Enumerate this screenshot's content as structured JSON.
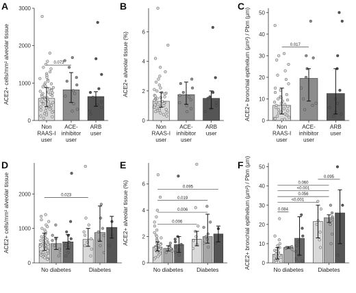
{
  "panels": [
    {
      "id": "A",
      "letter": "A",
      "ylabel": "ACE2+ cells/mm² alveolar tissue",
      "ylim": [
        0,
        3000
      ],
      "yticks": [
        0,
        1000,
        2000,
        3000
      ],
      "type": "bar",
      "categories": [
        "Non RAAS-I user",
        "ACE- inhibitor user",
        "ARB user"
      ],
      "category_lines": [
        [
          "Non",
          "RAAS-I",
          "user"
        ],
        [
          "ACE-",
          "inhibitor",
          "user"
        ],
        [
          "ARB",
          "user"
        ]
      ],
      "bars": [
        {
          "mean": 590,
          "err": [
            370,
            880
          ],
          "color": "#d9d9d9",
          "points": [
            2780,
            1800,
            1580,
            1500,
            1420,
            1380,
            1300,
            1250,
            1200,
            1150,
            1120,
            1080,
            1050,
            1000,
            980,
            950,
            920,
            900,
            880,
            850,
            820,
            800,
            780,
            760,
            740,
            720,
            700,
            680,
            660,
            640,
            620,
            600,
            580,
            560,
            540,
            520,
            500,
            480,
            460,
            440,
            420,
            400,
            380,
            360,
            340,
            320,
            300,
            280,
            260,
            240,
            220,
            200,
            180,
            150,
            120,
            100,
            60
          ]
        },
        {
          "mean": 820,
          "err": [
            480,
            1280
          ],
          "color": "#8c8c8c",
          "points": [
            1680,
            1600,
            1420,
            1150,
            1050,
            950,
            800,
            720,
            650,
            450,
            300,
            250
          ]
        },
        {
          "mean": 640,
          "err": [
            380,
            770
          ],
          "color": "#555555",
          "points": [
            2620,
            1650,
            1230,
            850,
            750,
            620,
            500,
            420,
            350,
            260,
            170
          ]
        }
      ],
      "brackets": [
        {
          "from": 0,
          "to": 1,
          "y": 1480,
          "label": "0.073"
        }
      ]
    },
    {
      "id": "B",
      "letter": "B",
      "ylabel": "ACE2+ alveolar tissue (%)",
      "ylim": [
        0,
        7.6
      ],
      "yticks": [
        0,
        2,
        4,
        6
      ],
      "type": "bar",
      "categories": [
        "Non RAAS-I user",
        "ACE- inhibitor user",
        "ARB user"
      ],
      "category_lines": [
        [
          "Non",
          "RAAS-I",
          "user"
        ],
        [
          "ACE-",
          "inhibitor",
          "user"
        ],
        [
          "ARB",
          "user"
        ]
      ],
      "bars": [
        {
          "mean": 1.3,
          "err": [
            0.9,
            1.9
          ],
          "color": "#d9d9d9",
          "points": [
            7.6,
            5.1,
            4.2,
            3.6,
            3.3,
            3.0,
            2.8,
            2.6,
            2.4,
            2.2,
            2.1,
            2.0,
            1.9,
            1.85,
            1.8,
            1.7,
            1.65,
            1.6,
            1.55,
            1.5,
            1.45,
            1.4,
            1.35,
            1.3,
            1.25,
            1.2,
            1.15,
            1.1,
            1.05,
            1.0,
            0.95,
            0.9,
            0.85,
            0.8,
            0.75,
            0.7,
            0.65,
            0.6,
            0.55,
            0.5,
            0.4,
            0.3
          ]
        },
        {
          "mean": 1.75,
          "err": [
            1.1,
            2.6
          ],
          "color": "#8c8c8c",
          "points": [
            2.8,
            2.5,
            2.2,
            1.9,
            1.7,
            1.6,
            1.4,
            1.2,
            1.0,
            0.8,
            0.6
          ]
        },
        {
          "mean": 1.5,
          "err": [
            0.8,
            2.0
          ],
          "color": "#555555",
          "points": [
            6.3,
            2.9,
            1.9,
            1.6,
            1.5,
            1.2,
            1.0,
            0.8,
            0.6
          ]
        }
      ],
      "brackets": []
    },
    {
      "id": "C",
      "letter": "C",
      "ylabel": "ACE2+ bronchial epithelium (μm²) / Pbm (μm)",
      "ylim": [
        0,
        52
      ],
      "yticks": [
        0,
        10,
        20,
        30,
        40,
        50
      ],
      "type": "bar",
      "categories": [
        "Non RAAS-I user",
        "ACE- inhibitor user",
        "ARB user"
      ],
      "category_lines": [
        [
          "Non",
          "RAAS-I",
          "user"
        ],
        [
          "ACE-",
          "inhibitor",
          "user"
        ],
        [
          "ARB",
          "user"
        ]
      ],
      "bars": [
        {
          "mean": 7.0,
          "err": [
            3.0,
            15.0
          ],
          "color": "#d9d9d9",
          "points": [
            44,
            31,
            30,
            28,
            26,
            23,
            21,
            19,
            17,
            15,
            14,
            13,
            12,
            11,
            10.5,
            10,
            9.5,
            9,
            8.5,
            8,
            7.5,
            7,
            6.5,
            6,
            5.5,
            5,
            4.5,
            4,
            3.5,
            3,
            2.5,
            2,
            1.5,
            1,
            0.8,
            0.5,
            0.3
          ]
        },
        {
          "mean": 19.5,
          "err": [
            9.0,
            24.0
          ],
          "color": "#8c8c8c",
          "points": [
            46,
            30,
            29,
            24,
            20,
            15,
            10,
            8,
            7,
            5
          ]
        },
        {
          "mean": 12.5,
          "err": [
            3.0,
            24.0
          ],
          "color": "#555555",
          "points": [
            50,
            46,
            30,
            24,
            14,
            10,
            8,
            6,
            4,
            3,
            2
          ]
        }
      ],
      "brackets": [
        {
          "from": 0,
          "to": 1,
          "y": 34,
          "label": "0.017"
        }
      ]
    },
    {
      "id": "D",
      "letter": "D",
      "ylabel": "ACE2+ cells/mm² alveolar tissue",
      "ylim": [
        0,
        2900
      ],
      "yticks": [
        0,
        1000,
        2000
      ],
      "type": "grouped",
      "groups": [
        "No diabetes",
        "Diabetes"
      ],
      "bars": [
        {
          "mean": 560,
          "err": [
            360,
            860
          ],
          "color": "#d9d9d9",
          "points": [
            1400,
            1350,
            1250,
            1200,
            1100,
            1050,
            1000,
            950,
            900,
            850,
            800,
            760,
            720,
            700,
            680,
            650,
            620,
            600,
            580,
            560,
            540,
            520,
            500,
            480,
            460,
            440,
            420,
            400,
            380,
            350,
            320,
            300,
            280,
            260,
            240,
            220,
            200,
            180,
            150,
            120,
            100
          ]
        },
        {
          "mean": 560,
          "err": [
            390,
            740
          ],
          "color": "#a6a6a6",
          "points": [
            1100,
            800,
            700,
            650,
            500,
            400,
            300,
            200
          ]
        },
        {
          "mean": 610,
          "err": [
            400,
            820
          ],
          "color": "#666666",
          "points": [
            2600,
            1200,
            900,
            800,
            700,
            600,
            550,
            500,
            450,
            300,
            200
          ]
        },
        {
          "mean": 680,
          "err": [
            480,
            1000
          ],
          "color": "#d9d9d9",
          "points": [
            2800,
            1300,
            1100,
            900,
            800,
            700,
            600,
            500,
            400,
            200
          ]
        },
        {
          "mean": 880,
          "err": [
            630,
            1650
          ],
          "color": "#a6a6a6",
          "points": [
            1700,
            1300,
            1000,
            900,
            800,
            650,
            500,
            300
          ]
        },
        {
          "mean": 1030,
          "err": [
            720,
            1350
          ],
          "color": "#555555",
          "points": [
            1200,
            800,
            500
          ]
        }
      ],
      "brackets": [
        {
          "from": 0,
          "to": 3,
          "y": 1900,
          "label": "0.023"
        }
      ]
    },
    {
      "id": "E",
      "letter": "E",
      "ylabel": "ACE2+ alveolar tissue (%)",
      "ylim": [
        0,
        7.6
      ],
      "yticks": [
        0,
        2,
        4,
        6
      ],
      "type": "grouped",
      "groups": [
        "No diabetes",
        "Diabetes"
      ],
      "bars": [
        {
          "mean": 1.2,
          "err": [
            0.9,
            1.6
          ],
          "color": "#d9d9d9",
          "points": [
            6.7,
            5.0,
            4.0,
            3.5,
            3.1,
            2.8,
            2.5,
            2.3,
            2.1,
            2.0,
            1.9,
            1.8,
            1.7,
            1.6,
            1.5,
            1.45,
            1.4,
            1.35,
            1.3,
            1.25,
            1.2,
            1.15,
            1.1,
            1.05,
            1.0,
            0.95,
            0.9,
            0.85,
            0.8,
            0.7,
            0.6,
            0.5,
            0.4,
            0.3
          ]
        },
        {
          "mean": 1.1,
          "err": [
            0.9,
            1.3
          ],
          "color": "#a6a6a6",
          "points": [
            1.5,
            1.3,
            1.1,
            1.0,
            0.9,
            0.8
          ]
        },
        {
          "mean": 1.4,
          "err": [
            0.8,
            2.0
          ],
          "color": "#666666",
          "points": [
            6.6,
            2.0,
            1.8,
            1.6,
            1.4,
            1.2,
            1.0,
            0.8,
            0.6
          ]
        },
        {
          "mean": 1.8,
          "err": [
            1.3,
            2.4
          ],
          "color": "#d9d9d9",
          "points": [
            7.5,
            4.2,
            2.8,
            2.4,
            2.0,
            1.7,
            1.4,
            1.1
          ]
        },
        {
          "mean": 2.0,
          "err": [
            1.5,
            3.7
          ],
          "color": "#a6a6a6",
          "points": [
            4.3,
            3.1,
            2.7,
            2.2,
            2.0,
            1.8,
            1.5,
            1.2
          ]
        },
        {
          "mean": 2.2,
          "err": [
            1.6,
            2.8
          ],
          "color": "#555555",
          "points": [
            2.6,
            2.1,
            1.5
          ]
        }
      ],
      "brackets": [
        {
          "from": 0,
          "to": 3,
          "y": 2.95,
          "label": "0.006"
        },
        {
          "from": 0,
          "to": 4,
          "y": 3.85,
          "label": "0.006"
        },
        {
          "from": 0,
          "to": 4,
          "y": 4.75,
          "label": "0.019"
        },
        {
          "from": 0,
          "to": 5,
          "y": 5.6,
          "label": "0.095"
        }
      ]
    },
    {
      "id": "F",
      "letter": "F",
      "ylabel": "ACE2+ bronchial epithelium (μm²) / Pbm (μm)",
      "ylim": [
        0,
        52
      ],
      "yticks": [
        0,
        10,
        20,
        30,
        40,
        50
      ],
      "type": "grouped",
      "groups": [
        "No diabetes",
        "Diabetes"
      ],
      "bars": [
        {
          "mean": 4.5,
          "err": [
            2.0,
            8.0
          ],
          "color": "#d9d9d9",
          "points": [
            23,
            14,
            12,
            10,
            9,
            8,
            7,
            6.5,
            6,
            5.5,
            5,
            4.5,
            4,
            3.5,
            3,
            2.5,
            2,
            1.5,
            1,
            0.5,
            0.3
          ]
        },
        {
          "mean": 8.0,
          "err": [
            7.5,
            8.5
          ],
          "color": "#a6a6a6",
          "points": [
            8.5,
            8,
            7.5,
            7
          ]
        },
        {
          "mean": 12.8,
          "err": [
            4.0,
            24.0
          ],
          "color": "#666666",
          "points": [
            25,
            18,
            14,
            11,
            9,
            6,
            4,
            2,
            1
          ]
        },
        {
          "mean": 21.5,
          "err": [
            13.0,
            30.0
          ],
          "color": "#d9d9d9",
          "points": [
            32,
            28,
            22,
            20,
            16,
            12,
            8
          ]
        },
        {
          "mean": 23.5,
          "err": [
            21.0,
            25.0
          ],
          "color": "#a6a6a6",
          "points": [
            30,
            26,
            24,
            22,
            20,
            15,
            10
          ]
        },
        {
          "mean": 26.0,
          "err": [
            10.0,
            38.0
          ],
          "color": "#555555",
          "points": [
            50,
            30,
            4
          ]
        }
      ],
      "brackets": [
        {
          "from": 0,
          "to": 1,
          "y": 26.5,
          "label": "0.084"
        },
        {
          "from": 0,
          "to": 3,
          "y": 31.5,
          "label": "<0.001"
        },
        {
          "from": 0,
          "to": 4,
          "y": 34.5,
          "label": "0.056"
        },
        {
          "from": 0,
          "to": 4,
          "y": 37.5,
          "label": "<0.001"
        },
        {
          "from": 0,
          "to": 4,
          "y": 40.5,
          "label": "0.060"
        },
        {
          "from": 3,
          "to": 5,
          "y": 43.5,
          "label": "0.095"
        }
      ]
    }
  ]
}
